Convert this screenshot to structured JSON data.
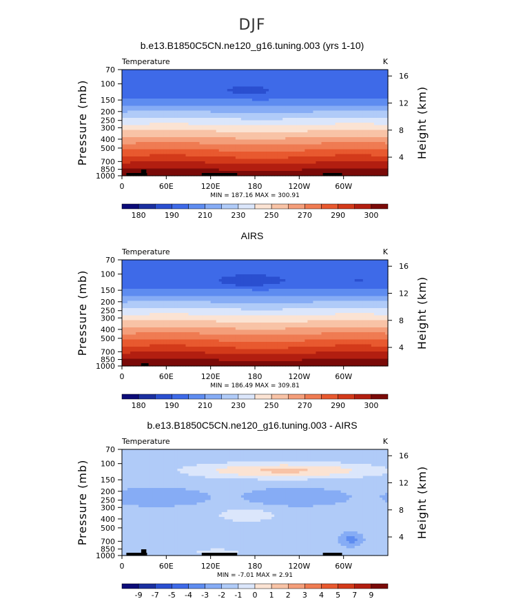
{
  "figure_title": "DJF",
  "chart_data": [
    {
      "type": "heatmap",
      "title": "b.e13.B1850C5CN.ne120_g16.tuning.003 (yrs 1-10)",
      "left_label": "Temperature",
      "right_label": "K",
      "ylabel": "Pressure (mb)",
      "y2label": "Height (km)",
      "pressure_ticks": [
        "70",
        "100",
        "150",
        "200",
        "250",
        "300",
        "400",
        "500",
        "700",
        "850",
        "1000"
      ],
      "height_ticks": [
        "16",
        "12",
        "8",
        "4"
      ],
      "longitude_ticks": [
        "0",
        "60E",
        "120E",
        "180",
        "120W",
        "60W"
      ],
      "minmax": "MIN = 187.16   MAX = 300.91",
      "colorbar_labels": [
        "180",
        "190",
        "210",
        "230",
        "250",
        "270",
        "290",
        "300"
      ],
      "colorbar_colors": [
        "#0b0b78",
        "#1a2fa0",
        "#2a4fd0",
        "#3e6ae8",
        "#5e8cf0",
        "#86acf5",
        "#b0cbf8",
        "#dbe6fb",
        "#fbe3d3",
        "#f8c3a6",
        "#f49e7a",
        "#ef7b52",
        "#e8592f",
        "#d33a1a",
        "#b21e10",
        "#7a0a08"
      ],
      "field": "model"
    },
    {
      "type": "heatmap",
      "title": "AIRS",
      "left_label": "Temperature",
      "right_label": "K",
      "ylabel": "Pressure (mb)",
      "y2label": "Height (km)",
      "pressure_ticks": [
        "70",
        "100",
        "150",
        "200",
        "250",
        "300",
        "400",
        "500",
        "700",
        "850",
        "1000"
      ],
      "height_ticks": [
        "16",
        "12",
        "8",
        "4"
      ],
      "longitude_ticks": [
        "0",
        "60E",
        "120E",
        "180",
        "120W",
        "60W"
      ],
      "minmax": "MIN = 186.49   MAX = 309.81",
      "colorbar_labels": [
        "180",
        "190",
        "210",
        "230",
        "250",
        "270",
        "290",
        "300"
      ],
      "colorbar_colors": [
        "#0b0b78",
        "#1a2fa0",
        "#2a4fd0",
        "#3e6ae8",
        "#5e8cf0",
        "#86acf5",
        "#b0cbf8",
        "#dbe6fb",
        "#fbe3d3",
        "#f8c3a6",
        "#f49e7a",
        "#ef7b52",
        "#e8592f",
        "#d33a1a",
        "#b21e10",
        "#7a0a08"
      ],
      "field": "obs"
    },
    {
      "type": "heatmap",
      "title": "b.e13.B1850C5CN.ne120_g16.tuning.003 - AIRS",
      "left_label": "Temperature",
      "right_label": "K",
      "ylabel": "Pressure (mb)",
      "y2label": "Height (km)",
      "pressure_ticks": [
        "70",
        "100",
        "150",
        "200",
        "250",
        "300",
        "400",
        "500",
        "700",
        "850",
        "1000"
      ],
      "height_ticks": [
        "16",
        "12",
        "8",
        "4"
      ],
      "longitude_ticks": [
        "0",
        "60E",
        "120E",
        "180",
        "120W",
        "60W"
      ],
      "minmax": "MIN =   -7.01   MAX =     2.91",
      "colorbar_labels": [
        "-9",
        "-7",
        "-5",
        "-4",
        "-3",
        "-2",
        "-1",
        "0",
        "1",
        "2",
        "3",
        "4",
        "5",
        "7",
        "9"
      ],
      "colorbar_colors": [
        "#0b0b78",
        "#1a2fa0",
        "#2a4fd0",
        "#3e6ae8",
        "#5e8cf0",
        "#86acf5",
        "#b0cbf8",
        "#dbe6fb",
        "#fbe3d3",
        "#f8c3a6",
        "#f49e7a",
        "#ef7b52",
        "#e8592f",
        "#d33a1a",
        "#b21e10",
        "#7a0a08"
      ],
      "field": "diff"
    }
  ]
}
